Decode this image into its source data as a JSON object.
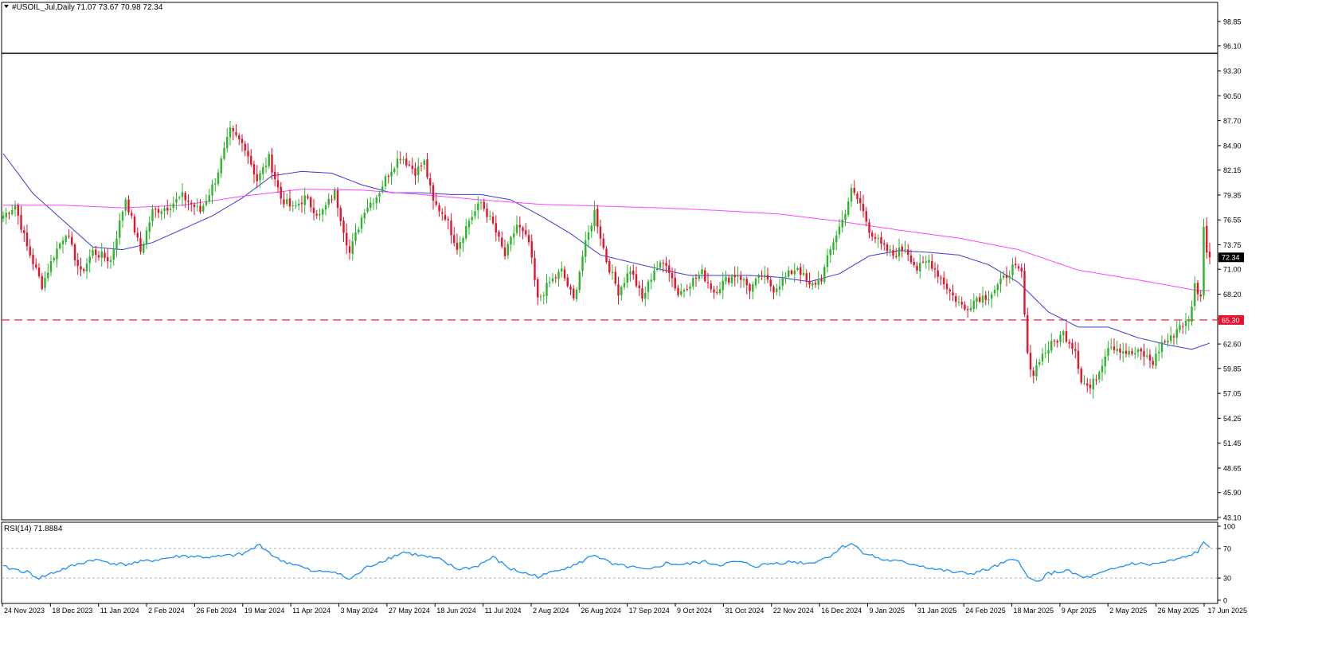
{
  "header": {
    "title": "#USOIL_Jul,Daily",
    "ohlc": "71.07 73.67 70.98 72.34"
  },
  "rsi": {
    "label": "RSI(14) 71.8884",
    "levels": [
      "100",
      "70",
      "30",
      "0"
    ]
  },
  "colors": {
    "bull": "#2db42d",
    "bear": "#e8102a",
    "ma_short": "#3a3ad8",
    "ma_long": "#ff44ff",
    "rsi": "#1e8ff0",
    "support": "#e8102a",
    "price_tag": "#000000"
  },
  "chart_data": {
    "type": "candlestick",
    "symbol": "#USOIL_Jul",
    "timeframe": "Daily",
    "y_ticks": [
      "98.85",
      "96.10",
      "93.30",
      "90.50",
      "87.70",
      "84.90",
      "82.15",
      "79.35",
      "76.55",
      "73.75",
      "71.00",
      "68.20",
      "65.40",
      "62.60",
      "59.85",
      "57.05",
      "54.25",
      "51.45",
      "48.65",
      "45.90",
      "43.10"
    ],
    "ylim": [
      43.1,
      98.85
    ],
    "x_ticks": [
      "24 Nov 2023",
      "18 Dec 2023",
      "11 Jan 2024",
      "2 Feb 2024",
      "26 Feb 2024",
      "19 Mar 2024",
      "11 Apr 2024",
      "3 May 2024",
      "27 May 2024",
      "18 Jun 2024",
      "11 Jul 2024",
      "2 Aug 2024",
      "26 Aug 2024",
      "17 Sep 2024",
      "9 Oct 2024",
      "31 Oct 2024",
      "22 Nov 2024",
      "16 Dec 2024",
      "9 Jan 2025",
      "31 Jan 2025",
      "24 Feb 2025",
      "18 Mar 2025",
      "9 Apr 2025",
      "2 May 2025",
      "26 May 2025",
      "17 Jun 2025"
    ],
    "current_price": "72.34",
    "support_level": "65.30",
    "close_anchors": [
      [
        0,
        77.0
      ],
      [
        4,
        78.2
      ],
      [
        8,
        73.5
      ],
      [
        13,
        69.2
      ],
      [
        17,
        72.6
      ],
      [
        21,
        75.2
      ],
      [
        26,
        70.5
      ],
      [
        30,
        73.0
      ],
      [
        36,
        72.0
      ],
      [
        41,
        79.0
      ],
      [
        46,
        73.0
      ],
      [
        50,
        77.5
      ],
      [
        55,
        78.0
      ],
      [
        60,
        79.2
      ],
      [
        66,
        77.5
      ],
      [
        71,
        81.0
      ],
      [
        76,
        86.5
      ],
      [
        81,
        84.8
      ],
      [
        85,
        81.0
      ],
      [
        89,
        83.5
      ],
      [
        93,
        79.0
      ],
      [
        97,
        77.8
      ],
      [
        101,
        79.0
      ],
      [
        106,
        77.0
      ],
      [
        111,
        79.6
      ],
      [
        116,
        72.8
      ],
      [
        121,
        77.8
      ],
      [
        125,
        79.2
      ],
      [
        129,
        81.8
      ],
      [
        133,
        83.8
      ],
      [
        138,
        82.0
      ],
      [
        141,
        83.0
      ],
      [
        144,
        78.5
      ],
      [
        148,
        77.0
      ],
      [
        152,
        73.5
      ],
      [
        156,
        76.5
      ],
      [
        160,
        78.5
      ],
      [
        164,
        76.0
      ],
      [
        168,
        72.5
      ],
      [
        172,
        76.0
      ],
      [
        176,
        74.0
      ],
      [
        179,
        67.5
      ],
      [
        183,
        69.5
      ],
      [
        187,
        70.8
      ],
      [
        191,
        67.5
      ],
      [
        194,
        72.5
      ],
      [
        198,
        77.5
      ],
      [
        202,
        72.0
      ],
      [
        206,
        68.5
      ],
      [
        210,
        71.0
      ],
      [
        214,
        67.6
      ],
      [
        218,
        71.0
      ],
      [
        222,
        71.8
      ],
      [
        226,
        68.2
      ],
      [
        230,
        69.5
      ],
      [
        234,
        70.6
      ],
      [
        238,
        68.5
      ],
      [
        242,
        69.8
      ],
      [
        246,
        70.5
      ],
      [
        250,
        68.8
      ],
      [
        254,
        70.3
      ],
      [
        258,
        68.8
      ],
      [
        262,
        70.1
      ],
      [
        266,
        71.3
      ],
      [
        270,
        69.0
      ],
      [
        274,
        70.0
      ],
      [
        278,
        74.2
      ],
      [
        281,
        76.5
      ],
      [
        284,
        79.8
      ],
      [
        287,
        78.4
      ],
      [
        290,
        75.5
      ],
      [
        294,
        73.6
      ],
      [
        298,
        72.6
      ],
      [
        302,
        73.5
      ],
      [
        306,
        71.0
      ],
      [
        310,
        72.0
      ],
      [
        314,
        70.0
      ],
      [
        318,
        68.0
      ],
      [
        322,
        66.5
      ],
      [
        326,
        67.8
      ],
      [
        330,
        68.0
      ],
      [
        334,
        69.5
      ],
      [
        338,
        71.2
      ],
      [
        341,
        70.5
      ],
      [
        343,
        61.2
      ],
      [
        345,
        59.2
      ],
      [
        347,
        61.0
      ],
      [
        351,
        62.5
      ],
      [
        355,
        63.8
      ],
      [
        359,
        62.0
      ],
      [
        361,
        58.5
      ],
      [
        364,
        57.6
      ],
      [
        367,
        59.6
      ],
      [
        370,
        62.5
      ],
      [
        373,
        62.2
      ],
      [
        377,
        61.5
      ],
      [
        381,
        61.6
      ],
      [
        385,
        60.5
      ],
      [
        388,
        62.7
      ],
      [
        391,
        63.2
      ],
      [
        394,
        64.8
      ],
      [
        397,
        65.0
      ],
      [
        399,
        69.2
      ],
      [
        401,
        68.0
      ],
      [
        402,
        75.5
      ],
      [
        403,
        73.3
      ],
      [
        404,
        72.34
      ]
    ],
    "series": [
      {
        "name": "",
        "type": "moving_average",
        "anchors": [
          [
            0,
            84.0
          ],
          [
            10,
            79.5
          ],
          [
            20,
            76.5
          ],
          [
            30,
            73.5
          ],
          [
            40,
            73.2
          ],
          [
            50,
            74.0
          ],
          [
            60,
            75.5
          ],
          [
            70,
            77.0
          ],
          [
            80,
            79.0
          ],
          [
            90,
            81.5
          ],
          [
            100,
            82.0
          ],
          [
            110,
            81.8
          ],
          [
            120,
            80.5
          ],
          [
            130,
            79.6
          ],
          [
            140,
            79.6
          ],
          [
            150,
            79.4
          ],
          [
            160,
            79.4
          ],
          [
            170,
            78.8
          ],
          [
            180,
            77.0
          ],
          [
            190,
            75.0
          ],
          [
            200,
            72.6
          ],
          [
            210,
            71.8
          ],
          [
            220,
            71.0
          ],
          [
            230,
            70.3
          ],
          [
            240,
            70.3
          ],
          [
            250,
            70.3
          ],
          [
            260,
            70.1
          ],
          [
            270,
            69.6
          ],
          [
            280,
            70.5
          ],
          [
            290,
            72.5
          ],
          [
            300,
            73.1
          ],
          [
            310,
            72.9
          ],
          [
            320,
            72.6
          ],
          [
            330,
            71.5
          ],
          [
            340,
            69.5
          ],
          [
            350,
            66.2
          ],
          [
            360,
            64.5
          ],
          [
            370,
            64.5
          ],
          [
            380,
            63.3
          ],
          [
            390,
            62.5
          ],
          [
            398,
            62.0
          ],
          [
            404,
            62.7
          ]
        ]
      },
      {
        "name": "",
        "type": "moving_average",
        "anchors": [
          [
            0,
            78.2
          ],
          [
            20,
            78.2
          ],
          [
            40,
            77.9
          ],
          [
            60,
            78.2
          ],
          [
            80,
            79.2
          ],
          [
            100,
            80.0
          ],
          [
            120,
            79.9
          ],
          [
            140,
            79.4
          ],
          [
            160,
            78.8
          ],
          [
            180,
            78.3
          ],
          [
            200,
            78.1
          ],
          [
            220,
            77.9
          ],
          [
            240,
            77.6
          ],
          [
            260,
            77.2
          ],
          [
            280,
            76.4
          ],
          [
            300,
            75.4
          ],
          [
            320,
            74.5
          ],
          [
            340,
            73.2
          ],
          [
            360,
            70.9
          ],
          [
            380,
            69.8
          ],
          [
            400,
            68.6
          ],
          [
            404,
            68.6
          ]
        ]
      },
      {
        "name": "RSI(14)",
        "type": "oscillator",
        "anchors": [
          [
            0,
            45
          ],
          [
            8,
            38
          ],
          [
            12,
            30
          ],
          [
            20,
            42
          ],
          [
            30,
            55
          ],
          [
            40,
            48
          ],
          [
            50,
            54
          ],
          [
            60,
            60
          ],
          [
            70,
            58
          ],
          [
            80,
            62
          ],
          [
            86,
            75
          ],
          [
            92,
            55
          ],
          [
            98,
            48
          ],
          [
            104,
            38
          ],
          [
            110,
            40
          ],
          [
            116,
            28
          ],
          [
            122,
            45
          ],
          [
            128,
            55
          ],
          [
            134,
            65
          ],
          [
            140,
            60
          ],
          [
            146,
            55
          ],
          [
            152,
            42
          ],
          [
            158,
            45
          ],
          [
            164,
            58
          ],
          [
            170,
            42
          ],
          [
            176,
            35
          ],
          [
            180,
            32
          ],
          [
            186,
            42
          ],
          [
            192,
            48
          ],
          [
            198,
            62
          ],
          [
            204,
            48
          ],
          [
            210,
            45
          ],
          [
            216,
            40
          ],
          [
            222,
            50
          ],
          [
            228,
            48
          ],
          [
            234,
            52
          ],
          [
            240,
            48
          ],
          [
            246,
            52
          ],
          [
            252,
            46
          ],
          [
            258,
            50
          ],
          [
            264,
            52
          ],
          [
            270,
            50
          ],
          [
            276,
            58
          ],
          [
            281,
            72
          ],
          [
            284,
            77
          ],
          [
            288,
            65
          ],
          [
            294,
            55
          ],
          [
            300,
            52
          ],
          [
            306,
            48
          ],
          [
            312,
            42
          ],
          [
            318,
            38
          ],
          [
            324,
            36
          ],
          [
            330,
            42
          ],
          [
            336,
            52
          ],
          [
            340,
            55
          ],
          [
            343,
            30
          ],
          [
            346,
            25
          ],
          [
            350,
            36
          ],
          [
            356,
            40
          ],
          [
            362,
            30
          ],
          [
            366,
            34
          ],
          [
            372,
            42
          ],
          [
            378,
            50
          ],
          [
            384,
            48
          ],
          [
            390,
            52
          ],
          [
            396,
            58
          ],
          [
            400,
            66
          ],
          [
            402,
            77
          ],
          [
            404,
            72
          ]
        ]
      }
    ],
    "legend": "none",
    "grid": false
  }
}
